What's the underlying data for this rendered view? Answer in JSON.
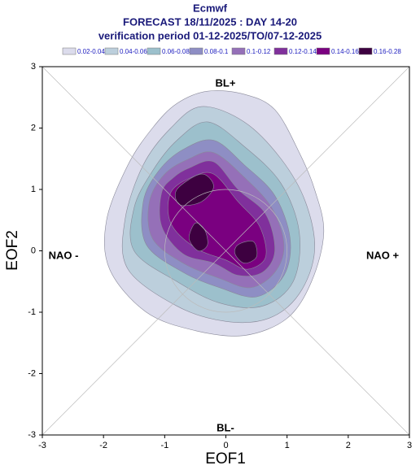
{
  "chart_data": {
    "type": "contour",
    "title": "Ecmwf",
    "subtitle": "FORECAST 18/11/2025 : DAY 14-20",
    "period": "verification period 01-12-2025/TO/07-12-2025",
    "xlabel": "EOF1",
    "ylabel": "EOF2",
    "xlim": [
      -3,
      3
    ],
    "ylim": [
      -3,
      3
    ],
    "xticks": [
      -3,
      -2,
      -1,
      0,
      1,
      2,
      3
    ],
    "yticks": [
      -3,
      -2,
      -1,
      0,
      1,
      2,
      3
    ],
    "annotations": [
      "BL+",
      "BL-",
      "NAO -",
      "NAO +"
    ],
    "series": [
      {
        "name": "0.02-0.04",
        "color": "#dcdcec",
        "x": [
          -0.8,
          -0.3,
          0.3,
          0.8,
          1.2,
          1.45,
          1.6,
          1.4,
          1.0,
          0.3,
          -0.5,
          -1.3,
          -1.9,
          -1.95,
          -1.6,
          -1.2
        ],
        "y": [
          2.4,
          2.6,
          2.55,
          2.3,
          1.6,
          1.0,
          0.3,
          -0.5,
          -1.1,
          -1.38,
          -1.3,
          -1.0,
          -0.3,
          0.5,
          1.4,
          2.0
        ]
      },
      {
        "name": "0.04-0.06",
        "color": "#bccfdc",
        "x": [
          -0.9,
          -0.4,
          0.3,
          0.9,
          1.3,
          1.45,
          1.2,
          0.7,
          0.0,
          -0.8,
          -1.6,
          -1.65,
          -1.35
        ],
        "y": [
          2.0,
          2.35,
          2.1,
          1.5,
          0.8,
          0.0,
          -0.7,
          -1.1,
          -1.15,
          -0.9,
          -0.3,
          0.5,
          1.4
        ]
      },
      {
        "name": "0.06-0.08",
        "color": "#9cc0cc",
        "x": [
          -0.8,
          -0.3,
          0.3,
          0.9,
          1.2,
          1.1,
          0.6,
          -0.1,
          -0.8,
          -1.5,
          -1.5,
          -1.2
        ],
        "y": [
          1.8,
          2.1,
          1.7,
          1.1,
          0.3,
          -0.5,
          -0.9,
          -0.85,
          -0.5,
          0.0,
          0.7,
          1.3
        ]
      },
      {
        "name": "0.08-0.1",
        "color": "#8e8ec4",
        "x": [
          -0.7,
          -0.2,
          0.3,
          0.8,
          1.05,
          0.95,
          0.5,
          -0.1,
          -0.7,
          -1.3,
          -1.35,
          -1.1
        ],
        "y": [
          1.65,
          1.8,
          1.4,
          0.9,
          0.2,
          -0.4,
          -0.75,
          -0.6,
          -0.35,
          0.1,
          0.8,
          1.3
        ]
      },
      {
        "name": "0.1-0.12",
        "color": "#9570b8",
        "x": [
          -0.6,
          -0.2,
          0.3,
          0.75,
          0.95,
          0.8,
          0.4,
          -0.1,
          -0.7,
          -1.2,
          -1.25,
          -1.0
        ],
        "y": [
          1.5,
          1.6,
          1.2,
          0.7,
          0.1,
          -0.35,
          -0.6,
          -0.45,
          -0.2,
          0.2,
          0.8,
          1.25
        ]
      },
      {
        "name": "0.12-0.14",
        "color": "#80309c",
        "x": [
          -0.6,
          -0.2,
          0.2,
          0.65,
          0.8,
          0.6,
          0.2,
          -0.2,
          -0.7,
          -1.05,
          -1.05,
          -0.85
        ],
        "y": [
          1.35,
          1.45,
          1.0,
          0.6,
          0.0,
          -0.35,
          -0.4,
          -0.2,
          -0.05,
          0.4,
          0.95,
          1.2
        ]
      },
      {
        "name": "0.14-0.16",
        "color": "#7a0080",
        "x": [
          -0.55,
          -0.2,
          0.2,
          0.55,
          0.65,
          0.35,
          0.0,
          -0.5,
          -0.9,
          -0.9
        ],
        "y": [
          1.2,
          1.25,
          0.8,
          0.4,
          -0.1,
          -0.3,
          -0.15,
          0.05,
          0.45,
          0.95
        ]
      },
      {
        "name": "0.16-0.28",
        "color": "#3d0040",
        "x": [
          -0.8,
          -0.4,
          -0.2,
          -0.4,
          -0.75,
          null,
          -0.5,
          -0.35,
          -0.3,
          -0.45,
          -0.6,
          null,
          0.2,
          0.45,
          0.5,
          0.3,
          0.15
        ],
        "y": [
          1.0,
          1.25,
          1.05,
          0.8,
          0.75,
          null,
          0.45,
          0.35,
          0.1,
          0.0,
          0.2,
          null,
          0.1,
          0.15,
          -0.1,
          -0.2,
          -0.05
        ]
      }
    ]
  }
}
